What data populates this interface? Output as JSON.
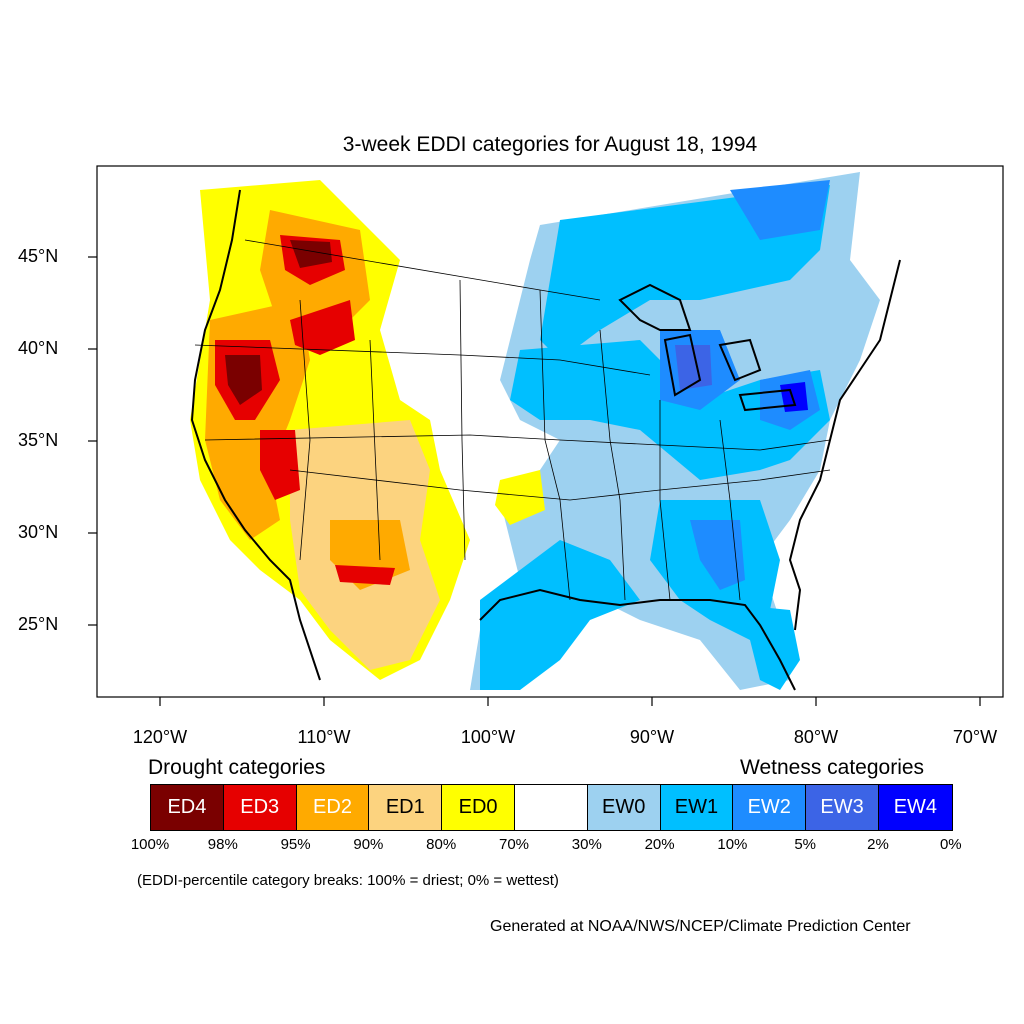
{
  "title": "3-week EDDI categories for August 18, 1994",
  "lat_labels": [
    "45°N",
    "40°N",
    "35°N",
    "30°N",
    "25°N"
  ],
  "lon_labels": [
    "120°W",
    "110°W",
    "100°W",
    "90°W",
    "80°W",
    "70°W"
  ],
  "legend": {
    "drought_heading": "Drought categories",
    "wetness_heading": "Wetness categories",
    "categories": [
      {
        "label": "ED4",
        "color": "#7a0000",
        "text_color": "#ffffff"
      },
      {
        "label": "ED3",
        "color": "#e60000",
        "text_color": "#ffffff"
      },
      {
        "label": "ED2",
        "color": "#ffaa00",
        "text_color": "#ffffff"
      },
      {
        "label": "ED1",
        "color": "#fcd37f",
        "text_color": "#000000"
      },
      {
        "label": "ED0",
        "color": "#ffff00",
        "text_color": "#000000"
      },
      {
        "label": "",
        "color": "#ffffff",
        "text_color": "#000000"
      },
      {
        "label": "EW0",
        "color": "#9dd1f0",
        "text_color": "#000000"
      },
      {
        "label": "EW1",
        "color": "#00bfff",
        "text_color": "#000000"
      },
      {
        "label": "EW2",
        "color": "#1e8cff",
        "text_color": "#ffffff"
      },
      {
        "label": "EW3",
        "color": "#3c64e6",
        "text_color": "#ffffff"
      },
      {
        "label": "EW4",
        "color": "#0000ff",
        "text_color": "#ffffff"
      }
    ],
    "breaks": [
      "100%",
      "98%",
      "95%",
      "90%",
      "80%",
      "70%",
      "30%",
      "20%",
      "10%",
      "5%",
      "2%",
      "0%"
    ]
  },
  "note": "(EDDI-percentile category breaks: 100% = driest; 0% = wettest)",
  "credit": "Generated at NOAA/NWS/NCEP/Climate Prediction Center"
}
